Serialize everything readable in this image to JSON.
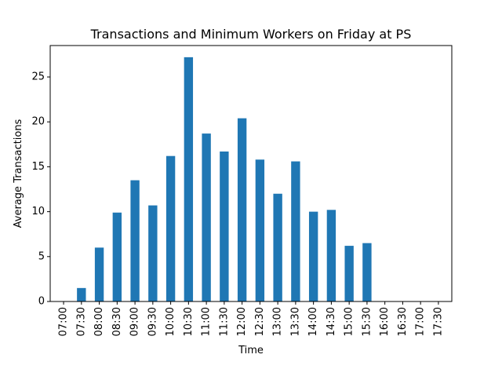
{
  "chart_data": {
    "type": "bar",
    "title": "Transactions and Minimum Workers on Friday at PS",
    "xlabel": "Time",
    "ylabel": "Average Transactions",
    "categories": [
      "07:00",
      "07:30",
      "08:00",
      "08:30",
      "09:00",
      "09:30",
      "10:00",
      "10:30",
      "11:00",
      "11:30",
      "12:00",
      "12:30",
      "13:00",
      "13:30",
      "14:00",
      "14:30",
      "15:00",
      "15:30",
      "16:00",
      "16:30",
      "17:00",
      "17:30"
    ],
    "values": [
      0,
      1.5,
      6.0,
      9.9,
      13.5,
      10.7,
      16.2,
      27.2,
      18.7,
      16.7,
      20.4,
      15.8,
      12.0,
      15.6,
      10.0,
      10.2,
      6.2,
      6.5,
      0,
      0,
      0,
      0
    ],
    "ylim": [
      0,
      28.5
    ],
    "yticks": [
      0,
      5,
      10,
      15,
      20,
      25
    ],
    "bar_color": "#1f77b4",
    "grid": false,
    "legend": "none"
  }
}
